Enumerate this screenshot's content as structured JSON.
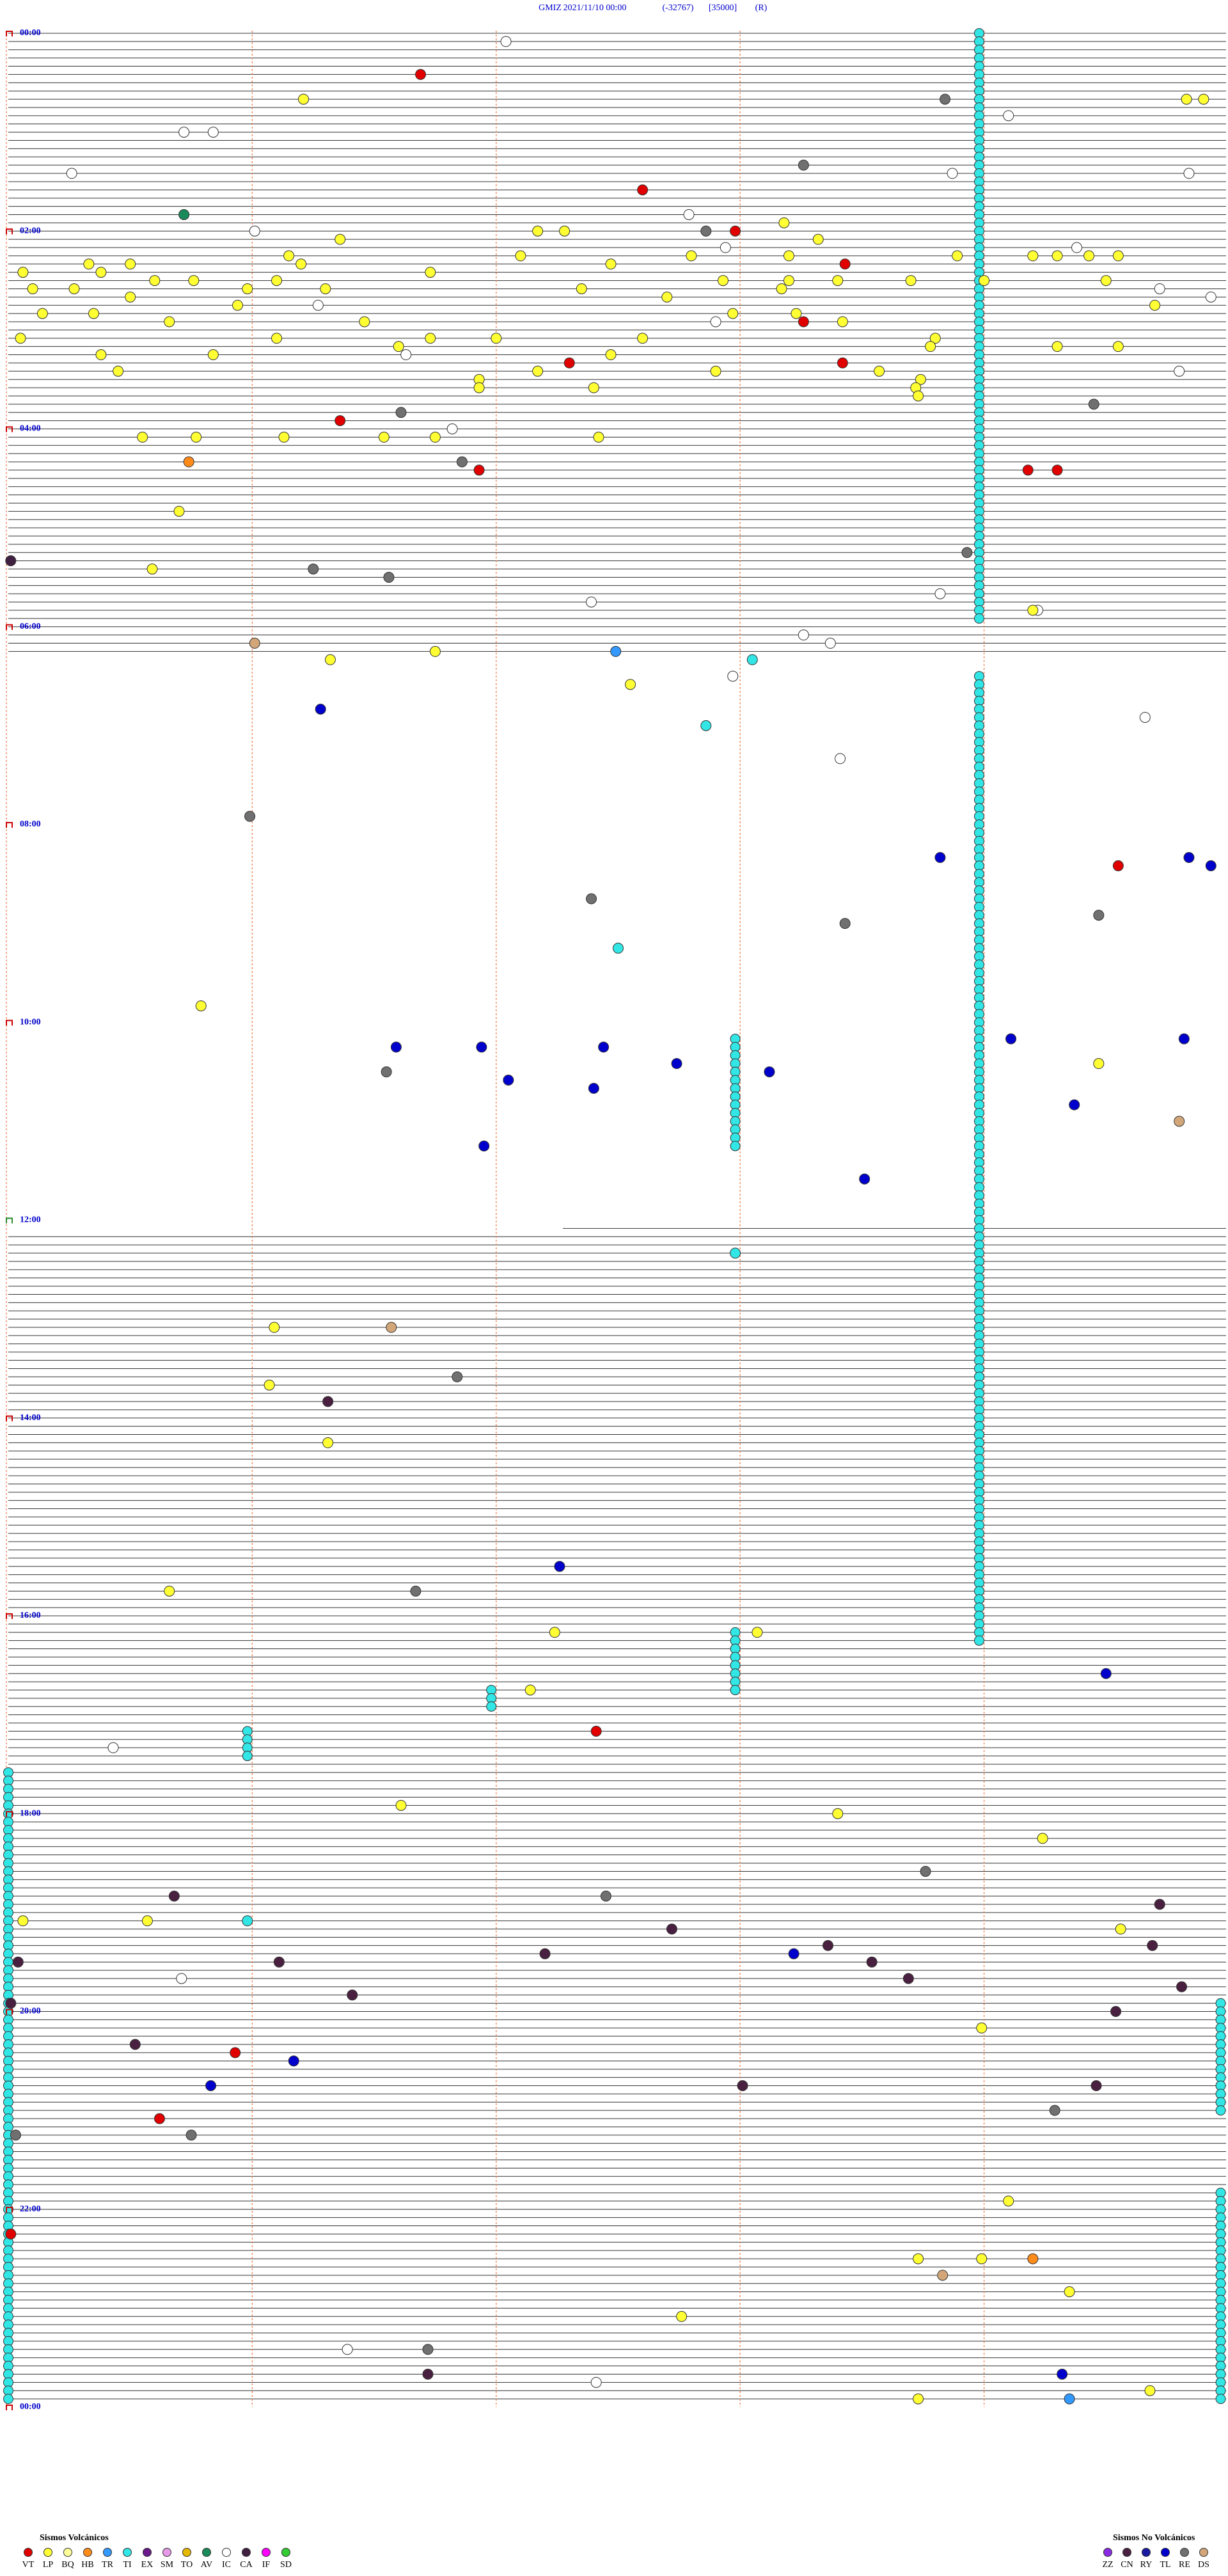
{
  "header": {
    "title_parts": [
      "GMIZ",
      "2021/11/10 00:00",
      "(-32767)",
      "[35000]",
      "(R)"
    ]
  },
  "time_labels": [
    "00:00",
    "02:00",
    "04:00",
    "06:00",
    "08:00",
    "10:00",
    "12:00",
    "14:00",
    "16:00",
    "18:00",
    "20:00",
    "22:00",
    "00:00"
  ],
  "legend_volcanic": {
    "title": "Sismos Volcánicos",
    "items": [
      {
        "code": "VT",
        "color": "#e00000"
      },
      {
        "code": "LP",
        "color": "#ffff33"
      },
      {
        "code": "BQ",
        "color": "#ffff99"
      },
      {
        "code": "HB",
        "color": "#ff8c1a"
      },
      {
        "code": "TR",
        "color": "#3399ff"
      },
      {
        "code": "TI",
        "color": "#33e6e6"
      },
      {
        "code": "EX",
        "color": "#6a1a8a"
      },
      {
        "code": "SM",
        "color": "#e699e6"
      },
      {
        "code": "TO",
        "color": "#e6b800"
      },
      {
        "code": "AV",
        "color": "#1a8a5a"
      },
      {
        "code": "IC",
        "color": "#ffffff"
      },
      {
        "code": "CA",
        "color": "#402040"
      },
      {
        "code": "IF",
        "color": "#ff00ff"
      },
      {
        "code": "SD",
        "color": "#33cc33"
      }
    ]
  },
  "legend_non_volcanic": {
    "title": "Sismos No Volcánicos",
    "items": [
      {
        "code": "ZZ",
        "color": "#8a2be2"
      },
      {
        "code": "CN",
        "color": "#4a2040"
      },
      {
        "code": "RY",
        "color": "#1a1aa0"
      },
      {
        "code": "TL",
        "color": "#0000cc"
      },
      {
        "code": "RE",
        "color": "#707070"
      },
      {
        "code": "DS",
        "color": "#d2a679"
      }
    ]
  },
  "events": [
    [
      "IC",
      1,
      2.04
    ],
    [
      "VT",
      5,
      1.69
    ],
    [
      "LP",
      8,
      1.21
    ],
    [
      "RE",
      8,
      3.84
    ],
    [
      "LP",
      8,
      4.83
    ],
    [
      "LP",
      8,
      4.9
    ],
    [
      "IC",
      10,
      4.1
    ],
    [
      "IC",
      12,
      0.72
    ],
    [
      "IC",
      12,
      0.84
    ],
    [
      "RE",
      16,
      3.26
    ],
    [
      "IC",
      17,
      0.26
    ],
    [
      "IC",
      17,
      3.87
    ],
    [
      "IC",
      17,
      4.84
    ],
    [
      "VT",
      19,
      2.6
    ],
    [
      "AV",
      22,
      0.72
    ],
    [
      "IC",
      22,
      2.79
    ],
    [
      "LP",
      23,
      3.18
    ],
    [
      "IC",
      24,
      1.01
    ],
    [
      "RE",
      24,
      2.86
    ],
    [
      "VT",
      24,
      2.98
    ],
    [
      "LP",
      24,
      2.17
    ],
    [
      "LP",
      24,
      2.28
    ],
    [
      "LP",
      25,
      1.36
    ],
    [
      "LP",
      25,
      3.32
    ],
    [
      "IC",
      26,
      2.94
    ],
    [
      "IC",
      26,
      4.38
    ],
    [
      "LP",
      27,
      1.15
    ],
    [
      "LP",
      27,
      2.1
    ],
    [
      "LP",
      27,
      2.8
    ],
    [
      "LP",
      27,
      3.2
    ],
    [
      "LP",
      27,
      3.89
    ],
    [
      "LP",
      27,
      4.2
    ],
    [
      "LP",
      27,
      4.3
    ],
    [
      "LP",
      27,
      4.43
    ],
    [
      "LP",
      27,
      4.55
    ],
    [
      "LP",
      28,
      0.33
    ],
    [
      "LP",
      28,
      0.5
    ],
    [
      "LP",
      28,
      1.2
    ],
    [
      "LP",
      28,
      2.47
    ],
    [
      "VT",
      28,
      3.43
    ],
    [
      "LP",
      29,
      0.06
    ],
    [
      "LP",
      29,
      0.38
    ],
    [
      "LP",
      29,
      1.73
    ],
    [
      "LP",
      30,
      0.6
    ],
    [
      "LP",
      30,
      0.76
    ],
    [
      "LP",
      30,
      1.1
    ],
    [
      "LP",
      30,
      2.93
    ],
    [
      "LP",
      30,
      3.2
    ],
    [
      "LP",
      30,
      3.4
    ],
    [
      "LP",
      30,
      3.7
    ],
    [
      "LP",
      30,
      4.0
    ],
    [
      "LP",
      30,
      4.5
    ],
    [
      "LP",
      31,
      0.1
    ],
    [
      "LP",
      31,
      0.27
    ],
    [
      "LP",
      31,
      0.98
    ],
    [
      "LP",
      31,
      1.3
    ],
    [
      "LP",
      31,
      2.35
    ],
    [
      "LP",
      31,
      3.17
    ],
    [
      "IC",
      31,
      4.72
    ],
    [
      "LP",
      32,
      0.5
    ],
    [
      "LP",
      32,
      2.7
    ],
    [
      "IC",
      32,
      4.93
    ],
    [
      "LP",
      33,
      0.94
    ],
    [
      "LP",
      33,
      4.7
    ],
    [
      "IC",
      33,
      1.27
    ],
    [
      "LP",
      34,
      0.14
    ],
    [
      "LP",
      34,
      0.35
    ],
    [
      "LP",
      34,
      2.97
    ],
    [
      "LP",
      34,
      3.23
    ],
    [
      "LP",
      35,
      0.66
    ],
    [
      "LP",
      35,
      1.46
    ],
    [
      "LP",
      35,
      3.42
    ],
    [
      "IC",
      35,
      2.9
    ],
    [
      "VT",
      35,
      3.26
    ],
    [
      "LP",
      37,
      0.05
    ],
    [
      "LP",
      37,
      1.1
    ],
    [
      "LP",
      37,
      1.73
    ],
    [
      "LP",
      37,
      2.0
    ],
    [
      "LP",
      37,
      2.6
    ],
    [
      "LP",
      37,
      3.8
    ],
    [
      "LP",
      38,
      1.6
    ],
    [
      "LP",
      38,
      3.78
    ],
    [
      "LP",
      38,
      4.3
    ],
    [
      "LP",
      38,
      4.55
    ],
    [
      "LP",
      39,
      0.38
    ],
    [
      "LP",
      39,
      0.84
    ],
    [
      "IC",
      39,
      1.63
    ],
    [
      "LP",
      39,
      2.47
    ],
    [
      "VT",
      40,
      2.3
    ],
    [
      "VT",
      40,
      3.42
    ],
    [
      "LP",
      41,
      0.45
    ],
    [
      "LP",
      41,
      2.17
    ],
    [
      "LP",
      41,
      2.9
    ],
    [
      "LP",
      41,
      3.57
    ],
    [
      "IC",
      41,
      4.8
    ],
    [
      "LP",
      42,
      1.93
    ],
    [
      "LP",
      42,
      3.74
    ],
    [
      "LP",
      43,
      1.93
    ],
    [
      "LP",
      43,
      2.4
    ],
    [
      "LP",
      43,
      3.72
    ],
    [
      "LP",
      44,
      3.73
    ],
    [
      "RE",
      45,
      4.45
    ],
    [
      "RE",
      46,
      1.61
    ],
    [
      "VT",
      47,
      1.36
    ],
    [
      "IC",
      48,
      1.82
    ],
    [
      "LP",
      49,
      0.55
    ],
    [
      "LP",
      49,
      0.77
    ],
    [
      "LP",
      49,
      1.13
    ],
    [
      "LP",
      49,
      1.54
    ],
    [
      "LP",
      49,
      1.75
    ],
    [
      "LP",
      49,
      2.42
    ],
    [
      "RE",
      52,
      1.86
    ],
    [
      "HB",
      52,
      0.74
    ],
    [
      "VT",
      53,
      1.93
    ],
    [
      "VT",
      53,
      4.18
    ],
    [
      "VT",
      53,
      4.3
    ],
    [
      "LP",
      58,
      0.7
    ],
    [
      "RE",
      63,
      3.93
    ],
    [
      "CA",
      64,
      0.01
    ],
    [
      "LP",
      65,
      0.59
    ],
    [
      "RE",
      65,
      1.25
    ],
    [
      "RE",
      66,
      1.56
    ],
    [
      "IC",
      68,
      3.82
    ],
    [
      "IC",
      69,
      2.39
    ],
    [
      "IC",
      70,
      4.22
    ],
    [
      "LP",
      70,
      4.2
    ],
    [
      "IC",
      73,
      3.26
    ],
    [
      "DS",
      74,
      1.01
    ],
    [
      "IC",
      74,
      3.37
    ],
    [
      "TR",
      75,
      2.49
    ],
    [
      "LP",
      75,
      1.75
    ],
    [
      "LP",
      76,
      1.32
    ],
    [
      "TI",
      76,
      3.05
    ],
    [
      "IC",
      78,
      2.97
    ],
    [
      "LP",
      79,
      2.55
    ],
    [
      "TL",
      82,
      1.28
    ],
    [
      "IC",
      83,
      4.66
    ],
    [
      "TI",
      84,
      2.86
    ],
    [
      "IC",
      88,
      3.41
    ],
    [
      "RE",
      95,
      0.99
    ],
    [
      "TL",
      100,
      3.82
    ],
    [
      "VT",
      101,
      4.55
    ],
    [
      "TL",
      100,
      4.84
    ],
    [
      "TL",
      101,
      4.93
    ],
    [
      "RE",
      105,
      2.39
    ],
    [
      "RE",
      107,
      4.47
    ],
    [
      "RE",
      108,
      3.43
    ],
    [
      "TI",
      111,
      2.5
    ],
    [
      "LP",
      118,
      0.79
    ],
    [
      "TL",
      122,
      4.11
    ],
    [
      "TL",
      122,
      4.82
    ],
    [
      "TL",
      123,
      1.59
    ],
    [
      "TL",
      123,
      1.94
    ],
    [
      "TL",
      123,
      2.44
    ],
    [
      "TL",
      125,
      2.74
    ],
    [
      "TL",
      126,
      3.12
    ],
    [
      "LP",
      125,
      4.47
    ],
    [
      "RE",
      126,
      1.55
    ],
    [
      "TL",
      127,
      2.05
    ],
    [
      "TL",
      128,
      2.4
    ],
    [
      "TL",
      130,
      4.37
    ],
    [
      "DS",
      132,
      4.8
    ],
    [
      "TL",
      135,
      1.95
    ],
    [
      "TL",
      139,
      3.51
    ],
    [
      "TI",
      148,
      2.98
    ],
    [
      "LP",
      157,
      1.09
    ],
    [
      "DS",
      157,
      1.57
    ],
    [
      "RE",
      163,
      1.84
    ],
    [
      "LP",
      164,
      1.07
    ],
    [
      "CN",
      166,
      1.31
    ],
    [
      "LP",
      171,
      1.31
    ],
    [
      "TL",
      186,
      2.26
    ],
    [
      "LP",
      189,
      0.66
    ],
    [
      "RE",
      189,
      1.67
    ],
    [
      "LP",
      194,
      2.24
    ],
    [
      "LP",
      194,
      3.07
    ],
    [
      "TL",
      199,
      4.5
    ],
    [
      "LP",
      201,
      2.14
    ],
    [
      "VT",
      206,
      2.41
    ],
    [
      "IC",
      208,
      0.43
    ],
    [
      "LP",
      215,
      1.61
    ],
    [
      "LP",
      216,
      3.4
    ],
    [
      "LP",
      219,
      4.24
    ],
    [
      "RE",
      223,
      3.76
    ],
    [
      "CN",
      226,
      0.68
    ],
    [
      "RE",
      226,
      2.45
    ],
    [
      "CN",
      227,
      4.72
    ],
    [
      "LP",
      229,
      0.06
    ],
    [
      "LP",
      229,
      0.57
    ],
    [
      "TI",
      229,
      0.98
    ],
    [
      "CN",
      230,
      2.72
    ],
    [
      "LP",
      230,
      4.56
    ],
    [
      "CN",
      233,
      2.2
    ],
    [
      "TL",
      233,
      3.22
    ],
    [
      "CN",
      232,
      3.36
    ],
    [
      "CN",
      232,
      4.69
    ],
    [
      "CN",
      234,
      0.04
    ],
    [
      "CN",
      234,
      1.11
    ],
    [
      "CN",
      234,
      3.54
    ],
    [
      "IC",
      236,
      0.71
    ],
    [
      "CN",
      236,
      3.69
    ],
    [
      "CN",
      237,
      4.81
    ],
    [
      "CN",
      238,
      1.41
    ],
    [
      "CN",
      240,
      4.54
    ],
    [
      "CN",
      239,
      0.01
    ],
    [
      "LP",
      242,
      3.99
    ],
    [
      "CN",
      244,
      0.52
    ],
    [
      "VT",
      245,
      0.93
    ],
    [
      "TL",
      246,
      1.17
    ],
    [
      "CN",
      249,
      3.01
    ],
    [
      "CN",
      249,
      4.46
    ],
    [
      "TL",
      249,
      0.83
    ],
    [
      "RE",
      252,
      4.29
    ],
    [
      "VT",
      253,
      0.62
    ],
    [
      "RE",
      255,
      0.75
    ],
    [
      "RE",
      255,
      0.03
    ],
    [
      "LP",
      263,
      4.1
    ],
    [
      "VT",
      267,
      0.01
    ],
    [
      "LP",
      270,
      3.73
    ],
    [
      "LP",
      270,
      3.99
    ],
    [
      "HB",
      270,
      4.2
    ],
    [
      "DS",
      272,
      3.83
    ],
    [
      "LP",
      274,
      4.35
    ],
    [
      "LP",
      277,
      2.76
    ],
    [
      "IC",
      281,
      1.39
    ],
    [
      "RE",
      281,
      1.72
    ],
    [
      "CN",
      284,
      1.72
    ],
    [
      "IC",
      285,
      2.41
    ],
    [
      "TL",
      284,
      4.32
    ],
    [
      "LP",
      286,
      4.68
    ],
    [
      "LP",
      287,
      3.73
    ],
    [
      "TR",
      287,
      4.35
    ]
  ],
  "runs": [
    {
      "type": "TI",
      "minute": 3.98,
      "first_row": 0,
      "last_row": 71
    },
    {
      "type": "TI",
      "minute": 3.98,
      "first_row": 78,
      "last_row": 195
    },
    {
      "type": "TI",
      "minute": 2.98,
      "first_row": 122,
      "last_row": 135
    },
    {
      "type": "TI",
      "minute": 2.98,
      "first_row": 194,
      "last_row": 201
    },
    {
      "type": "TI",
      "minute": 1.98,
      "first_row": 201,
      "last_row": 203
    },
    {
      "type": "TI",
      "minute": 0.98,
      "first_row": 206,
      "last_row": 209
    },
    {
      "type": "TI",
      "minute": 0,
      "first_row": 211,
      "last_row": 287
    },
    {
      "type": "TI",
      "minute": 4.97,
      "first_row": 239,
      "last_row": 252
    },
    {
      "type": "TI",
      "minute": 4.97,
      "first_row": 262,
      "last_row": 287
    }
  ]
}
